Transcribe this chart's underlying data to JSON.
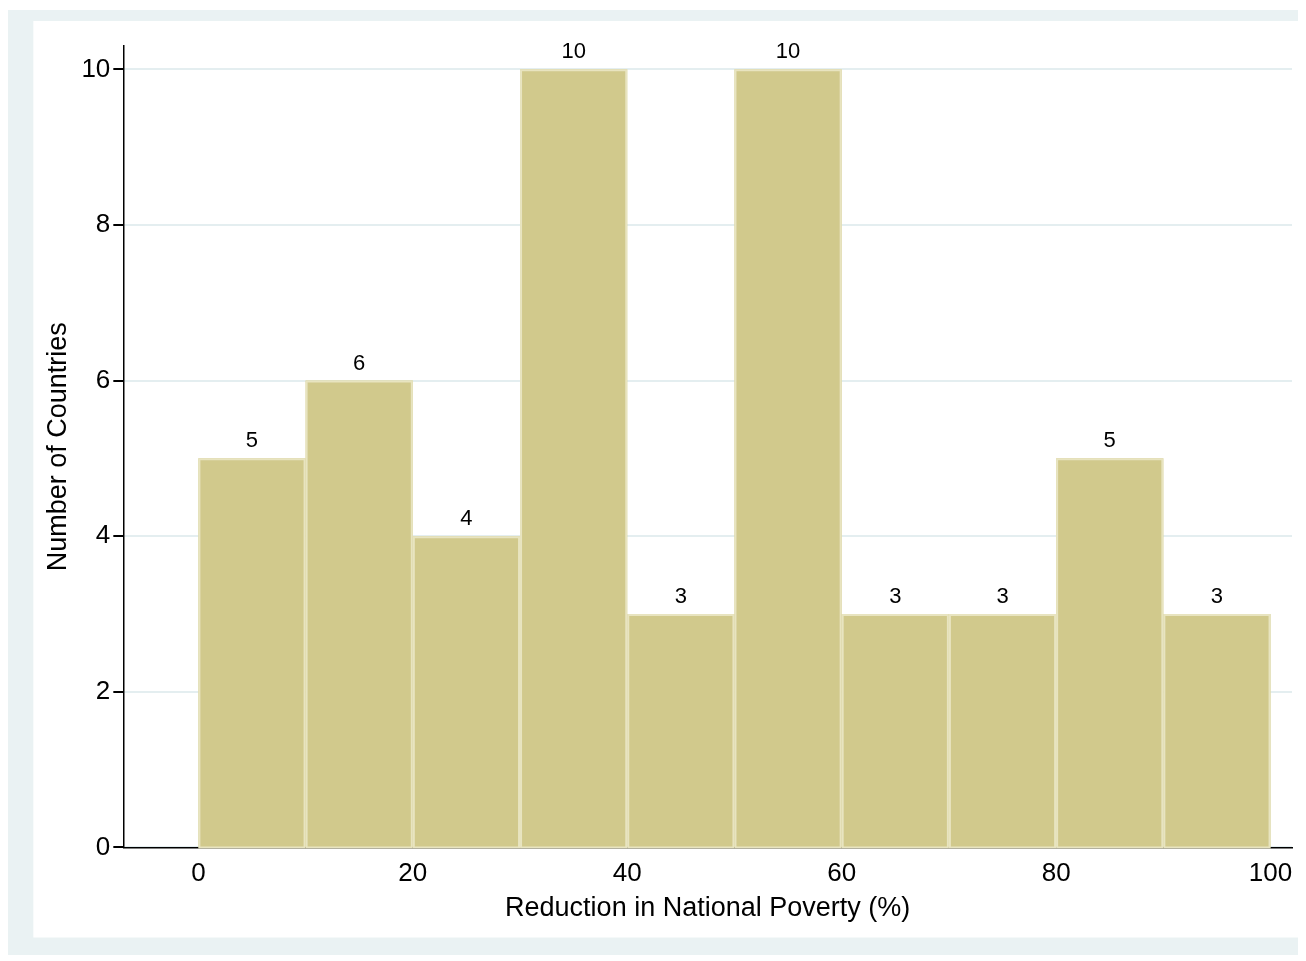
{
  "chart_data": {
    "type": "histogram",
    "xlabel": "Reduction in National Poverty (%)",
    "ylabel": "Number of Countries",
    "bins": [
      0,
      10,
      20,
      30,
      40,
      50,
      60,
      70,
      80,
      90,
      100
    ],
    "values": [
      5,
      6,
      4,
      10,
      3,
      10,
      3,
      3,
      5,
      3
    ],
    "color": "#d1c98c",
    "xlim": [
      -7,
      102
    ],
    "xticks": [
      0,
      20,
      40,
      60,
      80,
      100
    ],
    "ylim": [
      0,
      10.3
    ],
    "yticks": [
      0,
      2,
      4,
      6,
      8,
      10
    ],
    "grid": "y",
    "data_labels": true
  }
}
